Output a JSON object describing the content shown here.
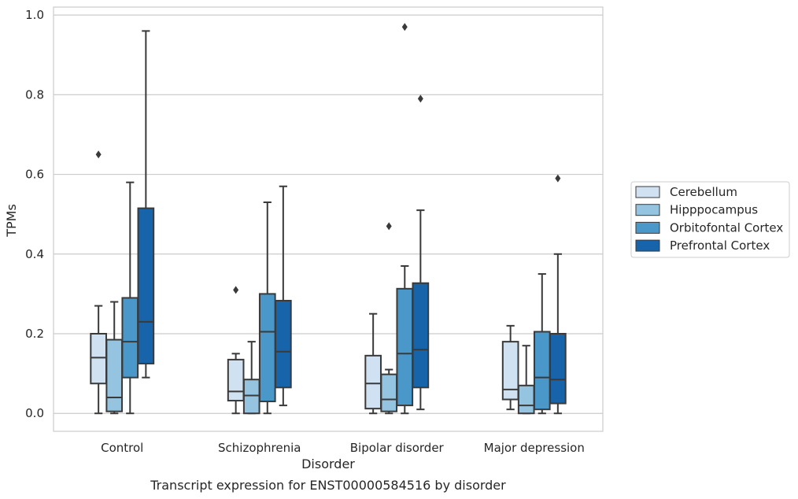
{
  "chart_data": {
    "type": "boxplot",
    "caption": "Transcript expression for ENST00000584516 by disorder",
    "xlabel": "Disorder",
    "ylabel": "TPMs",
    "ylim": [
      -0.045,
      1.02
    ],
    "yticks": [
      0.0,
      0.2,
      0.4,
      0.6,
      0.8,
      1.0
    ],
    "ytick_labels": [
      "0.0",
      "0.2",
      "0.4",
      "0.6",
      "0.8",
      "1.0"
    ],
    "grid": "horizontal",
    "legend_position": "right",
    "categories": [
      "Control",
      "Schizophrenia",
      "Bipolar disorder",
      "Major depression"
    ],
    "series": [
      {
        "name": "Cerebellum",
        "color": "#d0e1f2",
        "boxes": [
          {
            "whislo": 0.0,
            "q1": 0.075,
            "med": 0.14,
            "q3": 0.2,
            "whishi": 0.27,
            "fliers": [
              0.65
            ]
          },
          {
            "whislo": 0.0,
            "q1": 0.032,
            "med": 0.055,
            "q3": 0.135,
            "whishi": 0.15,
            "fliers": [
              0.31
            ]
          },
          {
            "whislo": 0.0,
            "q1": 0.012,
            "med": 0.075,
            "q3": 0.145,
            "whishi": 0.25,
            "fliers": []
          },
          {
            "whislo": 0.01,
            "q1": 0.035,
            "med": 0.06,
            "q3": 0.18,
            "whishi": 0.22,
            "fliers": []
          }
        ]
      },
      {
        "name": "Hipppocampus",
        "color": "#94c4df",
        "boxes": [
          {
            "whislo": 0.0,
            "q1": 0.005,
            "med": 0.04,
            "q3": 0.185,
            "whishi": 0.28,
            "fliers": []
          },
          {
            "whislo": 0.0,
            "q1": 0.0,
            "med": 0.045,
            "q3": 0.085,
            "whishi": 0.18,
            "fliers": []
          },
          {
            "whislo": 0.0,
            "q1": 0.005,
            "med": 0.035,
            "q3": 0.098,
            "whishi": 0.11,
            "fliers": [
              0.47
            ]
          },
          {
            "whislo": 0.0,
            "q1": 0.0,
            "med": 0.02,
            "q3": 0.07,
            "whishi": 0.17,
            "fliers": []
          }
        ]
      },
      {
        "name": "Orbitofontal Cortex",
        "color": "#4a98c9",
        "boxes": [
          {
            "whislo": 0.0,
            "q1": 0.09,
            "med": 0.18,
            "q3": 0.29,
            "whishi": 0.58,
            "fliers": []
          },
          {
            "whislo": 0.0,
            "q1": 0.03,
            "med": 0.205,
            "q3": 0.3,
            "whishi": 0.53,
            "fliers": []
          },
          {
            "whislo": 0.0,
            "q1": 0.02,
            "med": 0.15,
            "q3": 0.313,
            "whishi": 0.37,
            "fliers": [
              0.97
            ]
          },
          {
            "whislo": 0.0,
            "q1": 0.01,
            "med": 0.09,
            "q3": 0.205,
            "whishi": 0.35,
            "fliers": []
          }
        ]
      },
      {
        "name": "Prefrontal Cortex",
        "color": "#1764ab",
        "boxes": [
          {
            "whislo": 0.09,
            "q1": 0.125,
            "med": 0.23,
            "q3": 0.515,
            "whishi": 0.96,
            "fliers": []
          },
          {
            "whislo": 0.02,
            "q1": 0.065,
            "med": 0.155,
            "q3": 0.283,
            "whishi": 0.57,
            "fliers": []
          },
          {
            "whislo": 0.01,
            "q1": 0.065,
            "med": 0.16,
            "q3": 0.327,
            "whishi": 0.51,
            "fliers": [
              0.79
            ]
          },
          {
            "whislo": 0.0,
            "q1": 0.025,
            "med": 0.085,
            "q3": 0.2,
            "whishi": 0.4,
            "fliers": [
              0.59
            ]
          }
        ]
      }
    ]
  }
}
